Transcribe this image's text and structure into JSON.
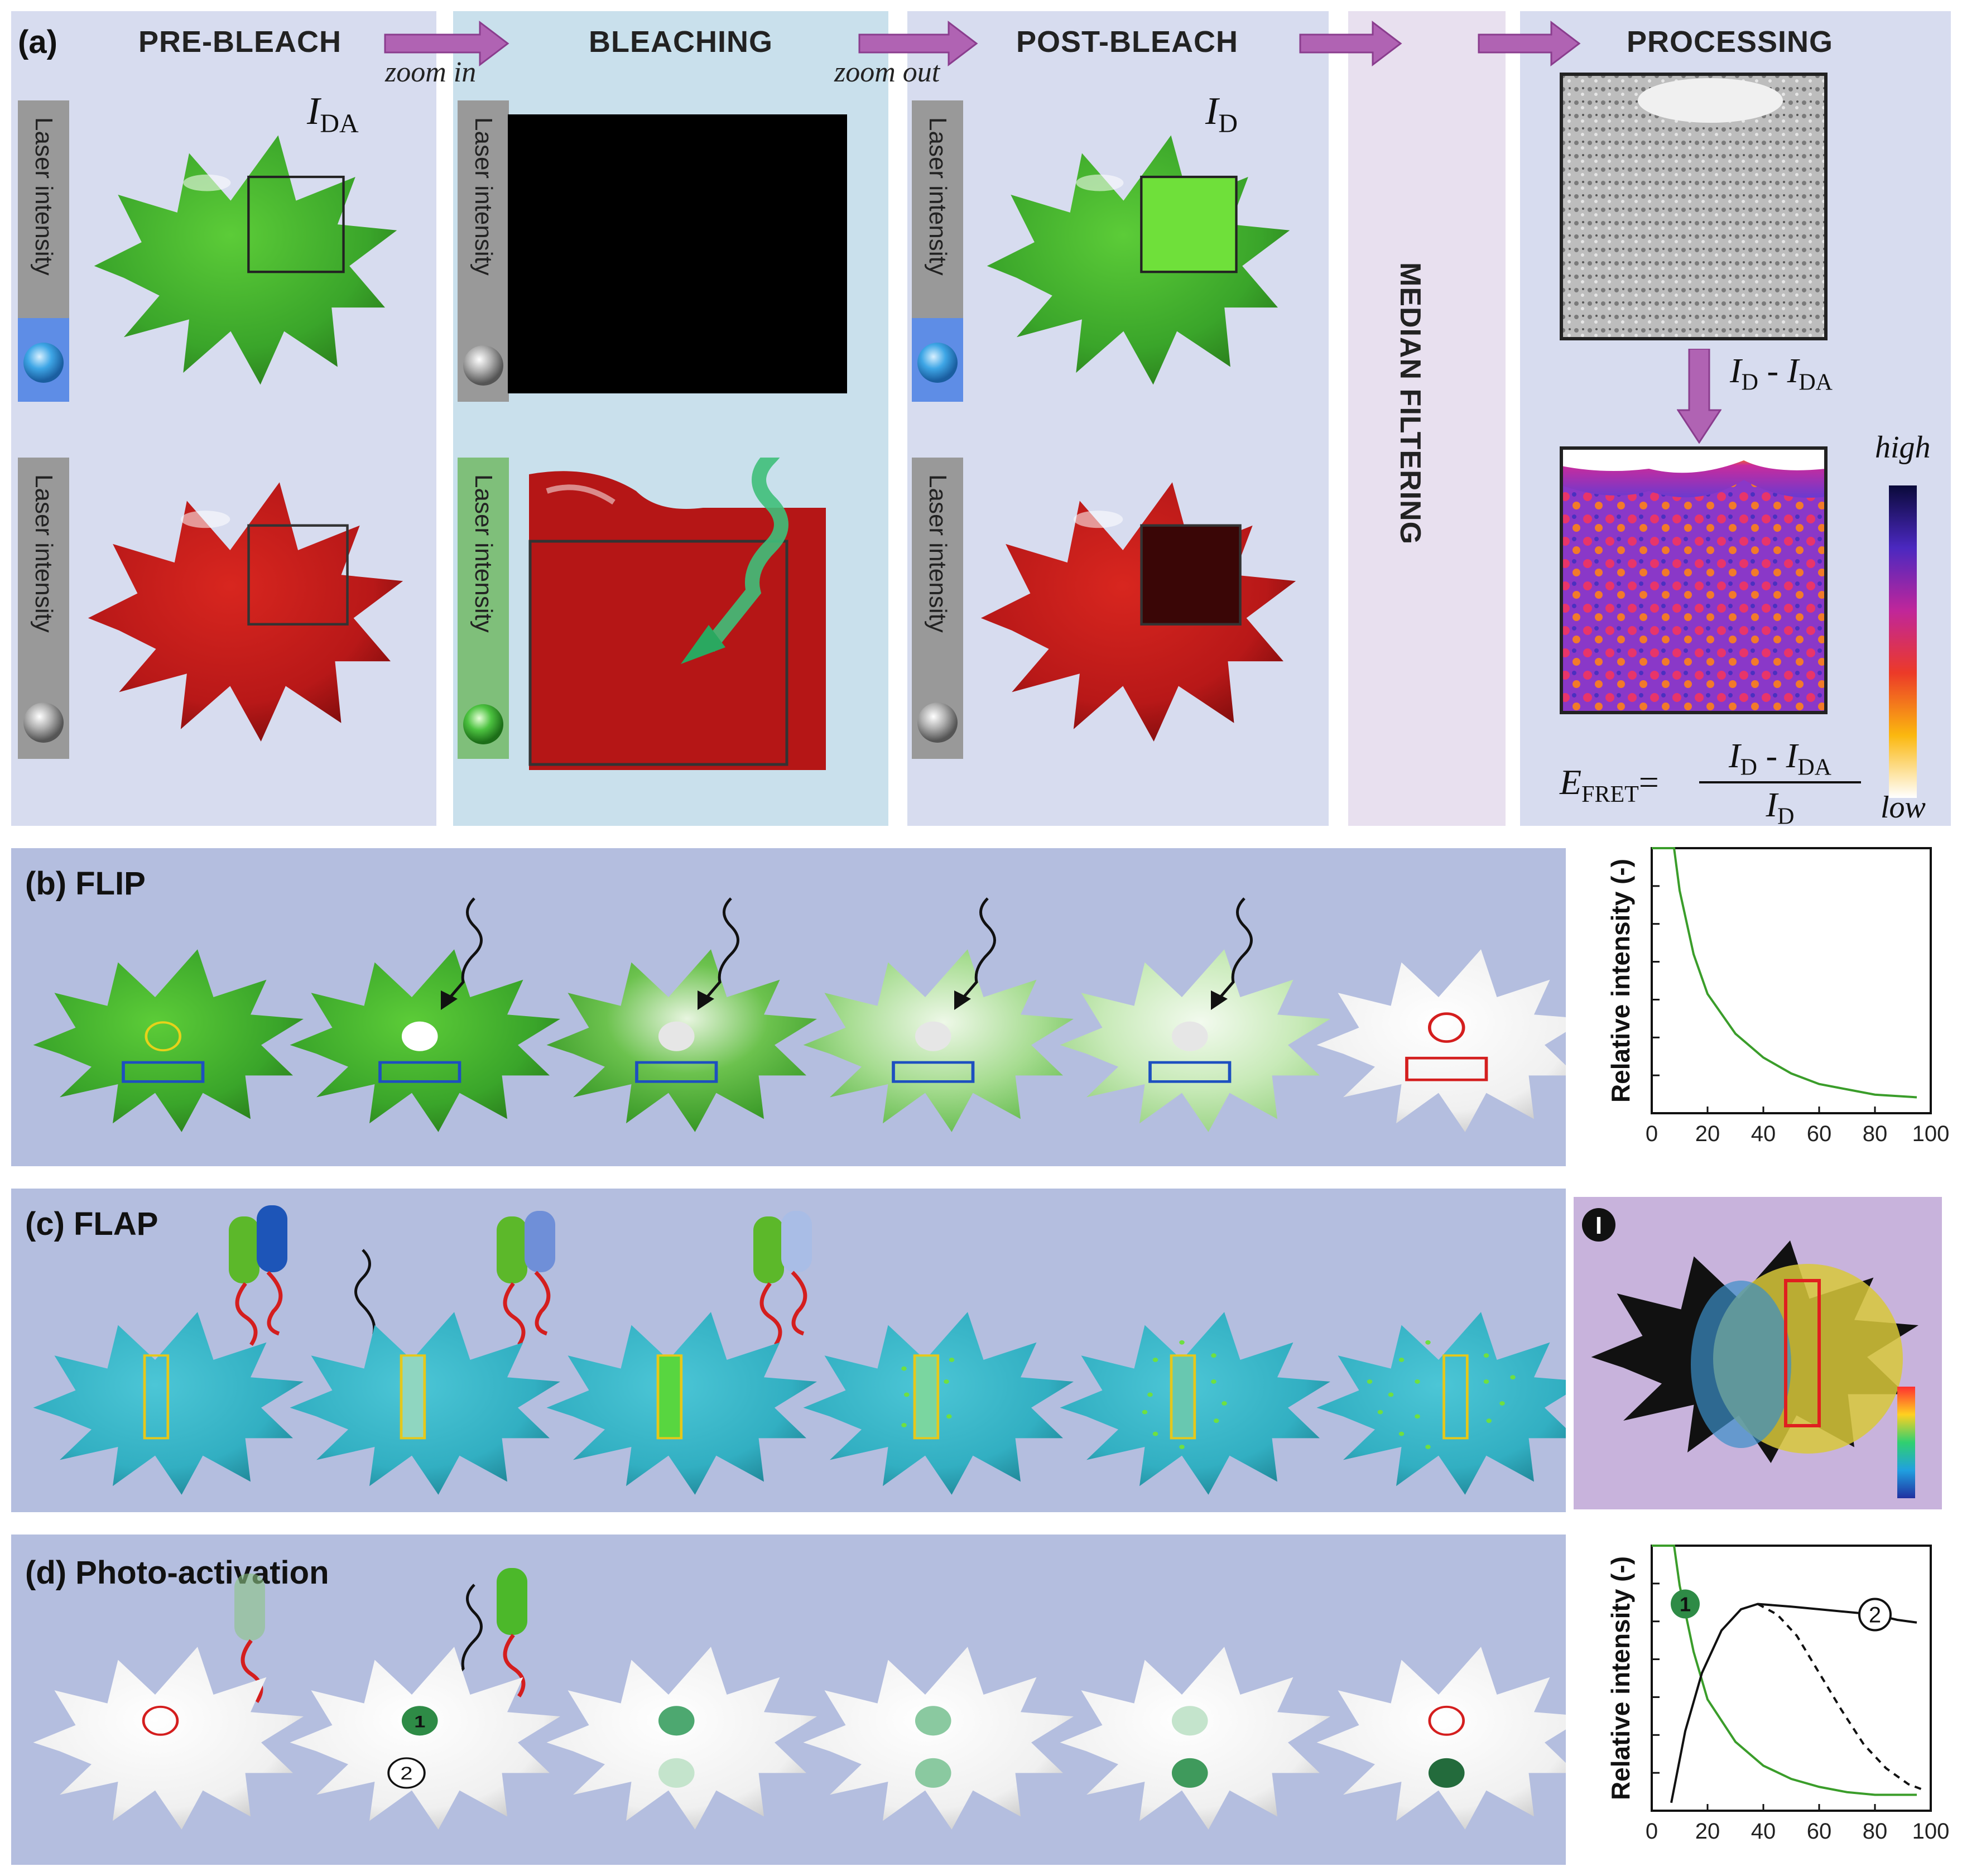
{
  "panel_a": {
    "label": "(a)",
    "headers": {
      "pre_bleach": "PRE-BLEACH",
      "bleaching": "BLEACHING",
      "post_bleach": "POST-BLEACH",
      "processing": "PROCESSING"
    },
    "zoom_in": "zoom in",
    "zoom_out": "zoom out",
    "laser_label": "Laser intensity",
    "i_da": {
      "main": "I",
      "sub": "DA"
    },
    "i_d": {
      "main": "I",
      "sub": "D"
    },
    "median_filtering": "MEDIAN FILTERING",
    "difference": {
      "a": "I",
      "a_sub": "D",
      "op": " - ",
      "b": "I",
      "b_sub": "DA"
    },
    "scale_high": "high",
    "scale_low": "low",
    "efret": {
      "e": "E",
      "e_sub": "FRET",
      "eq": "=",
      "num_a": "I",
      "num_a_sub": "D",
      "num_op": " - ",
      "num_b": "I",
      "num_b_sub": "DA",
      "den": "I",
      "den_sub": "D"
    }
  },
  "panel_b": {
    "label": "(b) FLIP"
  },
  "panel_c": {
    "label": "(c) FLAP",
    "badge": "I"
  },
  "panel_d": {
    "label": "(d) Photo-activation",
    "marker_1": "1",
    "marker_2": "2"
  },
  "colors": {
    "green": "#3aa52a",
    "red": "#c0181a",
    "cyan": "#35b6c9",
    "panel_bg": "#b4bedf",
    "curve_green": "#3a9d2a"
  },
  "chart_data": [
    {
      "type": "line",
      "ylabel": "Relative intensity (-)",
      "xlim": [
        0,
        100
      ],
      "ylim": [
        0,
        1
      ],
      "xticks": [
        0,
        20,
        40,
        60,
        80,
        100
      ],
      "series": [
        {
          "values_x": [
            0,
            8,
            10,
            15,
            20,
            30,
            40,
            50,
            60,
            70,
            80,
            95
          ],
          "values_y": [
            1,
            1,
            0.84,
            0.6,
            0.45,
            0.3,
            0.21,
            0.15,
            0.11,
            0.09,
            0.07,
            0.06
          ]
        }
      ]
    },
    {
      "type": "line",
      "ylabel": "Relative intensity (-)",
      "xlim": [
        0,
        100
      ],
      "ylim": [
        0,
        1
      ],
      "xticks": [
        0,
        20,
        40,
        60,
        80,
        100
      ],
      "annotations": [
        "1",
        "2"
      ],
      "series": [
        {
          "values_x": [
            0,
            8,
            10,
            15,
            20,
            30,
            40,
            50,
            60,
            70,
            80,
            95
          ],
          "values_y": [
            1,
            1,
            0.85,
            0.6,
            0.42,
            0.26,
            0.17,
            0.12,
            0.09,
            0.07,
            0.06,
            0.06
          ]
        },
        {
          "values_x": [
            7,
            12,
            18,
            25,
            32,
            38,
            50,
            60,
            70,
            80,
            88,
            95
          ],
          "values_y": [
            0.03,
            0.3,
            0.52,
            0.68,
            0.76,
            0.78,
            0.77,
            0.76,
            0.75,
            0.74,
            0.72,
            0.71
          ]
        },
        {
          "values_x": [
            38,
            45,
            52,
            60,
            68,
            76,
            84,
            92,
            97
          ],
          "values_y": [
            0.78,
            0.74,
            0.66,
            0.52,
            0.38,
            0.25,
            0.16,
            0.1,
            0.08
          ],
          "dashed": true
        }
      ]
    }
  ]
}
